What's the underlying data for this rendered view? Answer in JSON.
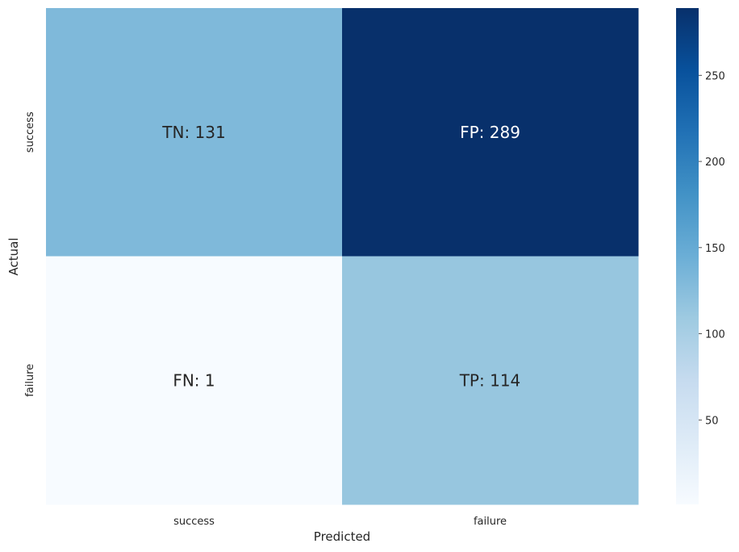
{
  "chart_data": {
    "type": "heatmap",
    "title": "",
    "xlabel": "Predicted",
    "ylabel": "Actual",
    "x_categories": [
      "success",
      "failure"
    ],
    "y_categories": [
      "success",
      "failure"
    ],
    "values": [
      [
        131,
        289
      ],
      [
        1,
        114
      ]
    ],
    "cell_labels": [
      [
        "TN: 131",
        "FP: 289"
      ],
      [
        "FN: 1",
        "TP: 114"
      ]
    ],
    "colormap": "Blues",
    "colorbar": {
      "range": [
        1,
        289
      ],
      "ticks": [
        50,
        100,
        150,
        200,
        250
      ],
      "tick_labels": [
        "50",
        "100",
        "150",
        "200",
        "250"
      ]
    }
  }
}
